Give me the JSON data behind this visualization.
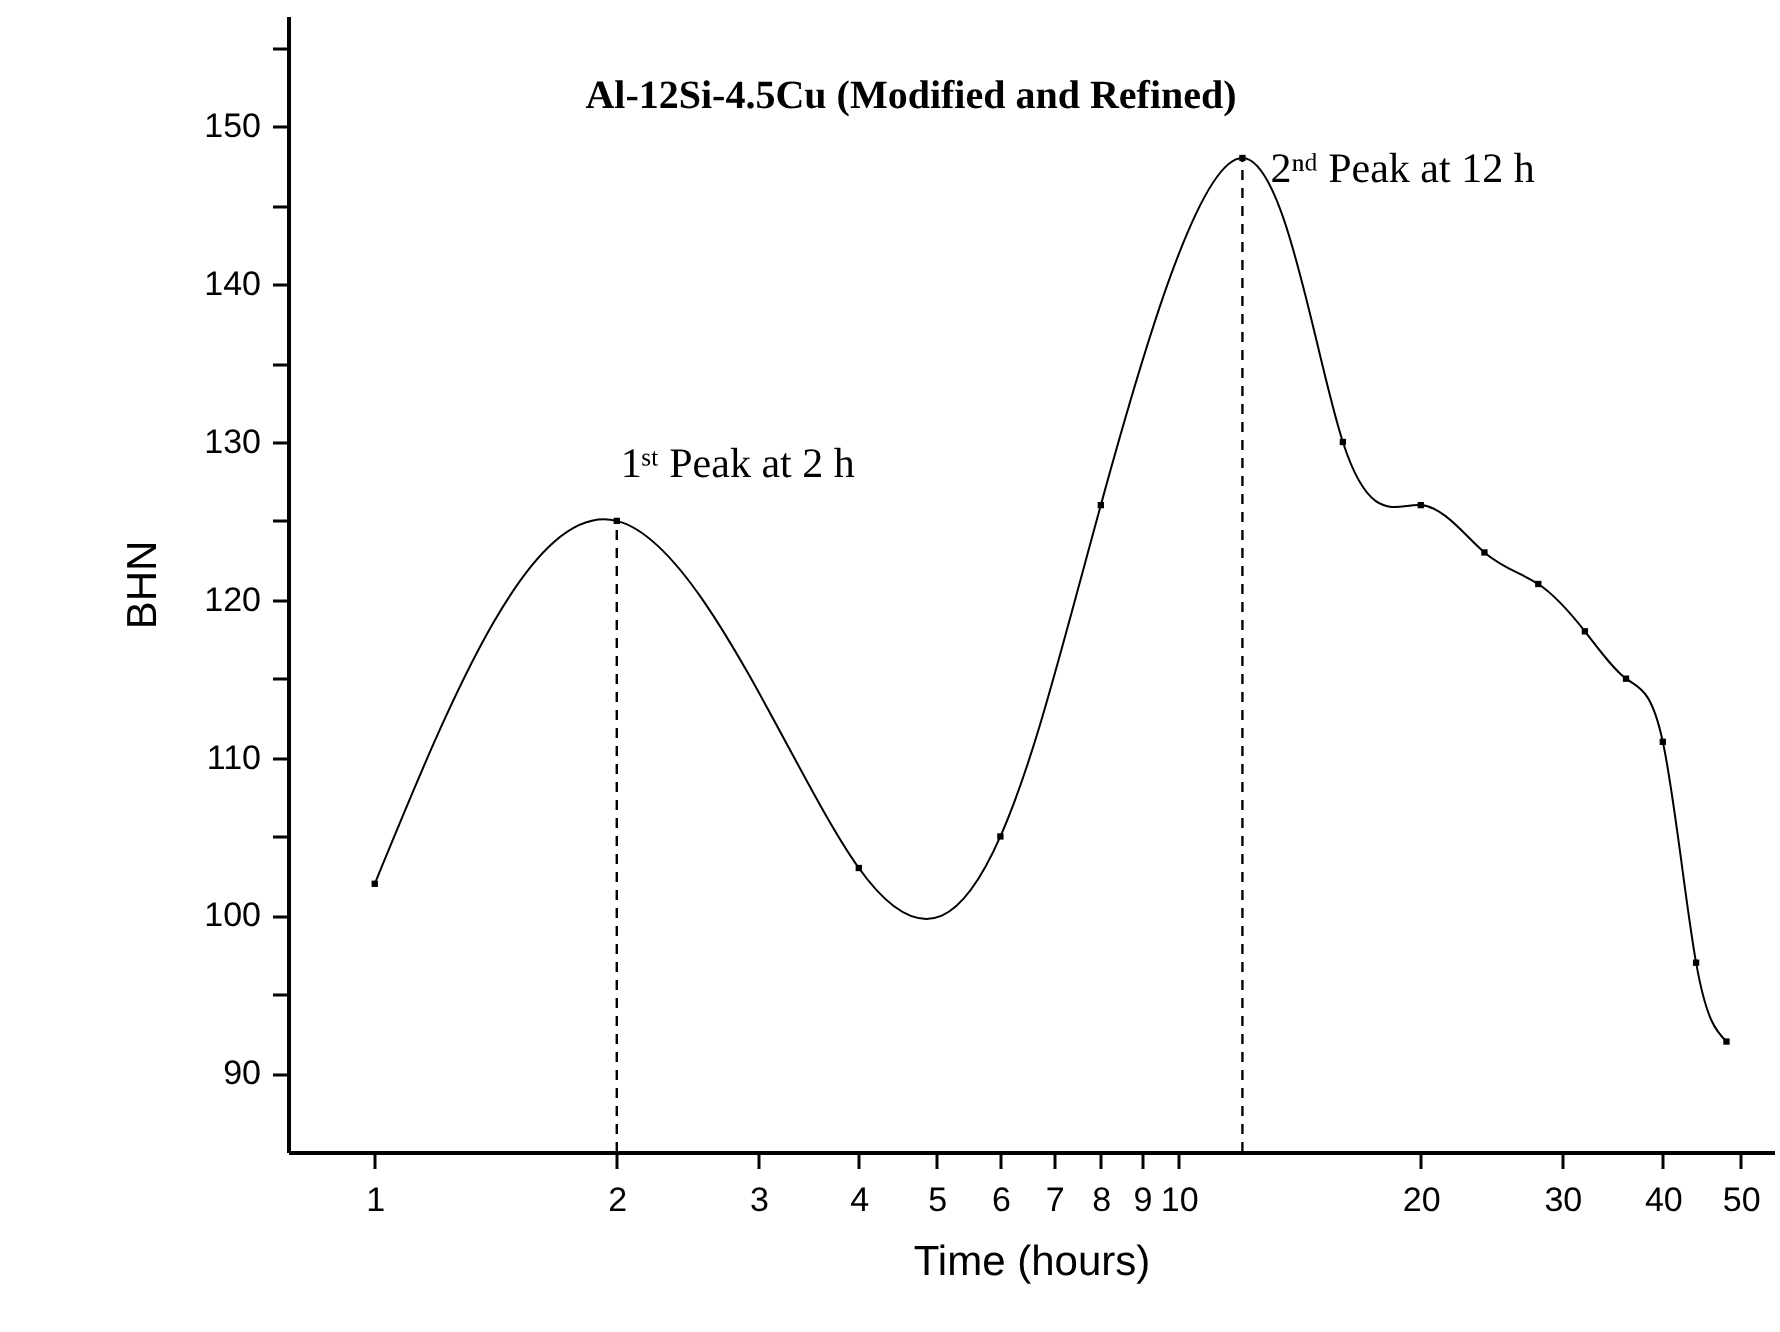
{
  "chart_data": {
    "type": "line",
    "title": "Al-12Si-4.5Cu (Modified and Refined)",
    "xlabel": "Time (hours)",
    "ylabel": "BHN",
    "log": "x",
    "xlim": [
      0.78,
      55
    ],
    "xticks": [
      1,
      2,
      3,
      4,
      5,
      6,
      7,
      8,
      9,
      10,
      20,
      30,
      40,
      50
    ],
    "ylim": [
      85,
      157
    ],
    "yticks": [
      90,
      {
        "value": 95,
        "label": null
      },
      100,
      {
        "value": 105,
        "label": null
      },
      110,
      {
        "value": 115,
        "label": null
      },
      120,
      {
        "value": 125,
        "label": null
      },
      130,
      {
        "value": 135,
        "label": null
      },
      140,
      {
        "value": 145,
        "label": null
      },
      150,
      {
        "value": 155,
        "label": null
      }
    ],
    "grid": false,
    "marker": "square",
    "line_style": "solid",
    "series": [
      {
        "color": "#000000",
        "x": [
          1,
          2,
          4,
          6,
          8,
          12,
          16,
          20,
          24,
          28,
          32,
          36,
          40,
          44,
          48
        ],
        "values": [
          102,
          125,
          103,
          105,
          126,
          148,
          130,
          126,
          123,
          121,
          118,
          115,
          111,
          97,
          92
        ]
      }
    ],
    "ref_lines": [
      {
        "axis": "x",
        "value": 2,
        "line_style": "dashed",
        "color": "#000000"
      },
      {
        "axis": "x",
        "value": 12,
        "line_style": "dashed",
        "color": "#000000"
      }
    ],
    "annotations": [
      {
        "text": "1ˢᵗ Peak at 2 h",
        "x": 2,
        "y": 125
      },
      {
        "text": "2ⁿᵈ Peak at 12 h",
        "x": 12,
        "y": 148
      }
    ]
  }
}
